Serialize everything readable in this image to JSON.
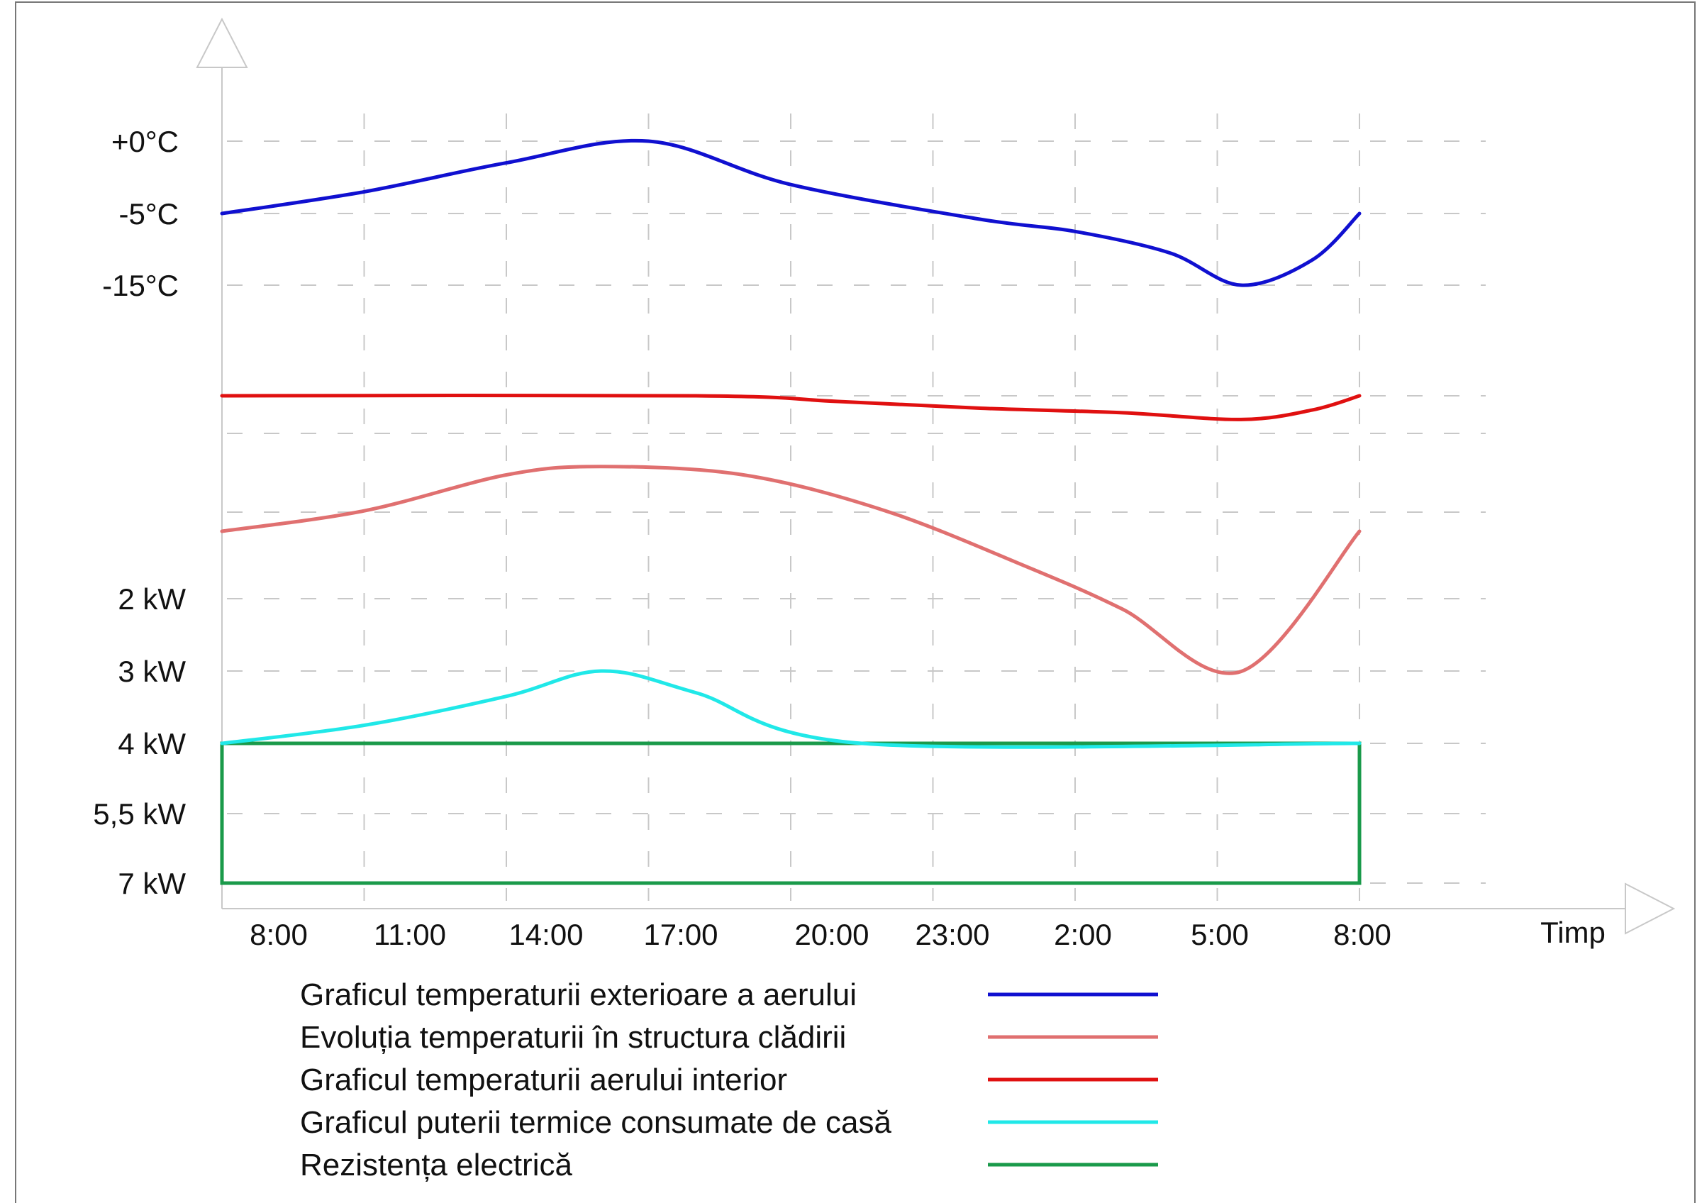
{
  "chart_data": {
    "type": "line",
    "x_axis": {
      "label": "Timp",
      "tick_labels": [
        "8:00",
        "11:00",
        "14:00",
        "17:00",
        "20:00",
        "23:00",
        "2:00",
        "5:00",
        "8:00"
      ],
      "range_hours": [
        0,
        24
      ]
    },
    "y_axis_temperature": {
      "tick_labels": [
        "+0°C",
        "-5°C",
        "-15°C"
      ]
    },
    "y_axis_power": {
      "tick_labels": [
        "2 kW",
        "3 kW",
        "4 kW",
        "5,5 kW",
        "7 kW"
      ]
    },
    "series": [
      {
        "key": "outdoor",
        "name": "Graficul temperaturii exterioare a aerului",
        "color": "#1010d0",
        "unit": "°C",
        "points": [
          [
            0,
            -5
          ],
          [
            3,
            -3.5
          ],
          [
            6,
            -1.5
          ],
          [
            9,
            0
          ],
          [
            12,
            -3
          ],
          [
            16,
            -5.8
          ],
          [
            18,
            -7.5
          ],
          [
            20,
            -10.5
          ],
          [
            21.5,
            -15
          ],
          [
            23,
            -11.5
          ],
          [
            24,
            -5
          ]
        ]
      },
      {
        "key": "structure",
        "name": "Evoluția temperaturii în structura clădirii",
        "color": "#e07070",
        "unit": "relative",
        "points": [
          [
            0,
            0.55
          ],
          [
            3,
            0.38
          ],
          [
            6,
            0.08
          ],
          [
            8,
            0.01
          ],
          [
            11,
            0.08
          ],
          [
            14,
            0.38
          ],
          [
            17,
            0.85
          ],
          [
            19,
            1.2
          ],
          [
            21.5,
            1.72
          ],
          [
            24,
            0.55
          ]
        ]
      },
      {
        "key": "indoor",
        "name": "Graficul temperaturii aerului interior",
        "color": "#e01010",
        "unit": "relative",
        "points": [
          [
            0,
            0
          ],
          [
            10,
            0
          ],
          [
            13,
            0.15
          ],
          [
            16,
            0.33
          ],
          [
            19,
            0.45
          ],
          [
            21.5,
            0.63
          ],
          [
            23,
            0.38
          ],
          [
            24,
            0
          ]
        ]
      },
      {
        "key": "power",
        "name": "Graficul puterii termice consumate de casă",
        "color": "#20e8e8",
        "unit": "kW",
        "points": [
          [
            0,
            4
          ],
          [
            3,
            3.75
          ],
          [
            6,
            3.35
          ],
          [
            8,
            3
          ],
          [
            10,
            3.3
          ],
          [
            13.5,
            4
          ],
          [
            24,
            4
          ]
        ]
      },
      {
        "key": "resistance",
        "name": "Rezistența electrică",
        "color": "#1a9a4a",
        "unit": "kW",
        "rect": {
          "x0": 0,
          "x1": 24,
          "from_kw": 4,
          "to_kw": 7
        }
      }
    ]
  }
}
